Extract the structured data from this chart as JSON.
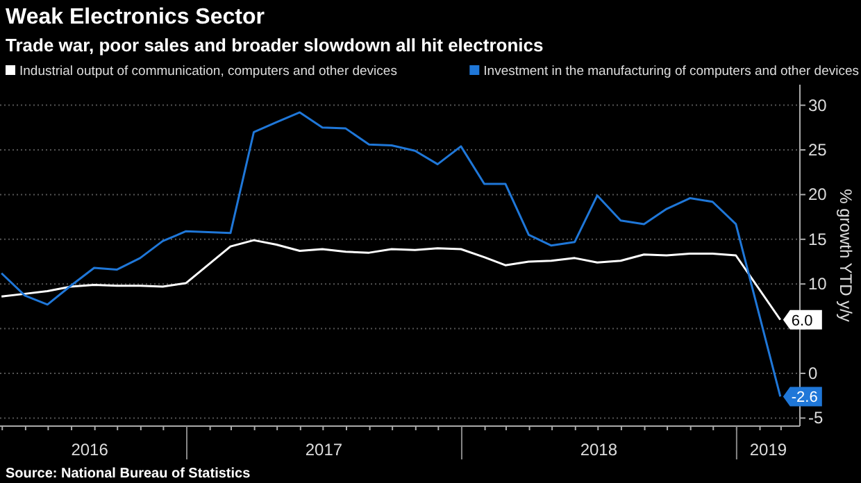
{
  "chart_data": {
    "type": "line",
    "title": "Weak Electronics Sector",
    "subtitle": "Trade war, poor sales and broader slowdown all hit electronics",
    "ylabel": "% growth YTD y/y",
    "annotations": [
      "Source: National Bureau of Statistics"
    ],
    "series": [
      {
        "name": "Industrial output of communication, computers and other devices",
        "color": "#ffffff",
        "x": [
          "2016-04-30",
          "2016-05-31",
          "2016-06-30",
          "2016-07-31",
          "2016-08-31",
          "2016-09-30",
          "2016-10-31",
          "2016-11-30",
          "2016-12-31",
          "2017-02-28",
          "2017-03-31",
          "2017-04-30",
          "2017-05-31",
          "2017-06-30",
          "2017-07-31",
          "2017-08-31",
          "2017-09-30",
          "2017-10-31",
          "2017-11-30",
          "2017-12-31",
          "2018-01-31",
          "2018-02-28",
          "2018-03-31",
          "2018-04-30",
          "2018-05-31",
          "2018-06-30",
          "2018-07-31",
          "2018-08-31",
          "2018-09-30",
          "2018-10-31",
          "2018-11-30",
          "2018-12-31",
          "2019-02-28"
        ],
        "values": [
          8.6,
          8.9,
          9.2,
          9.7,
          9.9,
          9.8,
          9.8,
          9.7,
          10.1,
          14.2,
          14.9,
          14.4,
          13.7,
          13.9,
          13.6,
          13.5,
          13.9,
          13.8,
          14,
          13.9,
          13,
          12.1,
          12.5,
          12.6,
          12.9,
          12.4,
          12.6,
          13.3,
          13.2,
          13.4,
          13.4,
          13.2,
          6.0
        ],
        "value_labels": [
          null,
          null,
          null,
          null,
          null,
          null,
          null,
          null,
          null,
          null,
          null,
          null,
          null,
          null,
          null,
          null,
          null,
          null,
          null,
          null,
          null,
          null,
          null,
          null,
          null,
          null,
          null,
          null,
          null,
          null,
          null,
          null,
          "6.0"
        ]
      },
      {
        "name": "Investment in the manufacturing of computers and other devices",
        "color": "#1f77d8",
        "x": [
          "2016-04-30",
          "2016-05-31",
          "2016-06-30",
          "2016-07-31",
          "2016-08-31",
          "2016-09-30",
          "2016-10-31",
          "2016-11-30",
          "2016-12-31",
          "2017-02-28",
          "2017-03-31",
          "2017-04-30",
          "2017-05-31",
          "2017-06-30",
          "2017-07-31",
          "2017-08-31",
          "2017-09-30",
          "2017-10-31",
          "2017-11-30",
          "2017-12-31",
          "2018-01-31",
          "2018-02-28",
          "2018-03-31",
          "2018-04-30",
          "2018-05-31",
          "2018-06-30",
          "2018-07-31",
          "2018-08-31",
          "2018-09-30",
          "2018-10-31",
          "2018-11-30",
          "2018-12-31",
          "2019-02-28"
        ],
        "values": [
          11.2,
          8.7,
          7.7,
          9.8,
          11.8,
          11.6,
          12.9,
          14.8,
          15.9,
          15.7,
          27,
          28.1,
          29.2,
          27.5,
          27.4,
          25.6,
          25.5,
          24.9,
          23.4,
          25.4,
          21.2,
          21.2,
          15.5,
          14.3,
          14.7,
          19.9,
          17.1,
          16.7,
          18.4,
          19.6,
          19.2,
          16.7,
          -2.6
        ],
        "value_labels": [
          null,
          null,
          null,
          null,
          null,
          null,
          null,
          null,
          null,
          null,
          null,
          null,
          null,
          null,
          null,
          null,
          null,
          null,
          null,
          null,
          null,
          null,
          null,
          null,
          null,
          null,
          null,
          null,
          null,
          null,
          null,
          null,
          "-2.6"
        ]
      }
    ],
    "xlim": [
      "2016-04-28",
      "2019-03-26"
    ],
    "xticks": [
      {
        "value": "2016-08-25",
        "label": "2016"
      },
      {
        "value": "2017-01-01",
        "label": null
      },
      {
        "value": "2017-07-02",
        "label": "2017"
      },
      {
        "value": "2018-01-01",
        "label": null
      },
      {
        "value": "2018-07-02",
        "label": "2018"
      },
      {
        "value": "2019-01-01",
        "label": null
      },
      {
        "value": "2019-02-12",
        "label": "2019"
      }
    ],
    "ylim": [
      -5.9,
      32.3
    ],
    "yticks": [
      -5,
      0,
      {
        "value": 5,
        "label": null
      },
      10,
      15,
      20,
      25,
      30
    ],
    "grid": "y",
    "legend": "top left",
    "marker": "none",
    "line_style": "solid"
  }
}
